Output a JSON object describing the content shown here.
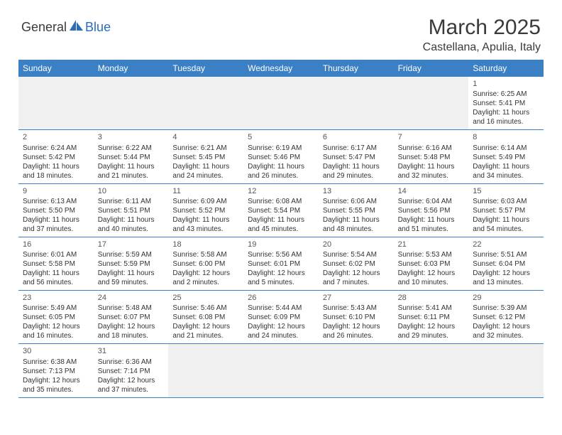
{
  "logo": {
    "part1": "General",
    "part2": "Blue"
  },
  "title": "March 2025",
  "subtitle": "Castellana, Apulia, Italy",
  "colors": {
    "header_bg": "#3b7fc4",
    "header_text": "#ffffff",
    "text": "#333333",
    "blank_bg": "#f0f0f0",
    "logo_blue": "#2a6db8"
  },
  "daynames": [
    "Sunday",
    "Monday",
    "Tuesday",
    "Wednesday",
    "Thursday",
    "Friday",
    "Saturday"
  ],
  "weeks": [
    [
      {
        "blank": true
      },
      {
        "blank": true
      },
      {
        "blank": true
      },
      {
        "blank": true
      },
      {
        "blank": true
      },
      {
        "blank": true
      },
      {
        "n": "1",
        "sr": "Sunrise: 6:25 AM",
        "ss": "Sunset: 5:41 PM",
        "dl1": "Daylight: 11 hours",
        "dl2": "and 16 minutes."
      }
    ],
    [
      {
        "n": "2",
        "sr": "Sunrise: 6:24 AM",
        "ss": "Sunset: 5:42 PM",
        "dl1": "Daylight: 11 hours",
        "dl2": "and 18 minutes."
      },
      {
        "n": "3",
        "sr": "Sunrise: 6:22 AM",
        "ss": "Sunset: 5:44 PM",
        "dl1": "Daylight: 11 hours",
        "dl2": "and 21 minutes."
      },
      {
        "n": "4",
        "sr": "Sunrise: 6:21 AM",
        "ss": "Sunset: 5:45 PM",
        "dl1": "Daylight: 11 hours",
        "dl2": "and 24 minutes."
      },
      {
        "n": "5",
        "sr": "Sunrise: 6:19 AM",
        "ss": "Sunset: 5:46 PM",
        "dl1": "Daylight: 11 hours",
        "dl2": "and 26 minutes."
      },
      {
        "n": "6",
        "sr": "Sunrise: 6:17 AM",
        "ss": "Sunset: 5:47 PM",
        "dl1": "Daylight: 11 hours",
        "dl2": "and 29 minutes."
      },
      {
        "n": "7",
        "sr": "Sunrise: 6:16 AM",
        "ss": "Sunset: 5:48 PM",
        "dl1": "Daylight: 11 hours",
        "dl2": "and 32 minutes."
      },
      {
        "n": "8",
        "sr": "Sunrise: 6:14 AM",
        "ss": "Sunset: 5:49 PM",
        "dl1": "Daylight: 11 hours",
        "dl2": "and 34 minutes."
      }
    ],
    [
      {
        "n": "9",
        "sr": "Sunrise: 6:13 AM",
        "ss": "Sunset: 5:50 PM",
        "dl1": "Daylight: 11 hours",
        "dl2": "and 37 minutes."
      },
      {
        "n": "10",
        "sr": "Sunrise: 6:11 AM",
        "ss": "Sunset: 5:51 PM",
        "dl1": "Daylight: 11 hours",
        "dl2": "and 40 minutes."
      },
      {
        "n": "11",
        "sr": "Sunrise: 6:09 AM",
        "ss": "Sunset: 5:52 PM",
        "dl1": "Daylight: 11 hours",
        "dl2": "and 43 minutes."
      },
      {
        "n": "12",
        "sr": "Sunrise: 6:08 AM",
        "ss": "Sunset: 5:54 PM",
        "dl1": "Daylight: 11 hours",
        "dl2": "and 45 minutes."
      },
      {
        "n": "13",
        "sr": "Sunrise: 6:06 AM",
        "ss": "Sunset: 5:55 PM",
        "dl1": "Daylight: 11 hours",
        "dl2": "and 48 minutes."
      },
      {
        "n": "14",
        "sr": "Sunrise: 6:04 AM",
        "ss": "Sunset: 5:56 PM",
        "dl1": "Daylight: 11 hours",
        "dl2": "and 51 minutes."
      },
      {
        "n": "15",
        "sr": "Sunrise: 6:03 AM",
        "ss": "Sunset: 5:57 PM",
        "dl1": "Daylight: 11 hours",
        "dl2": "and 54 minutes."
      }
    ],
    [
      {
        "n": "16",
        "sr": "Sunrise: 6:01 AM",
        "ss": "Sunset: 5:58 PM",
        "dl1": "Daylight: 11 hours",
        "dl2": "and 56 minutes."
      },
      {
        "n": "17",
        "sr": "Sunrise: 5:59 AM",
        "ss": "Sunset: 5:59 PM",
        "dl1": "Daylight: 11 hours",
        "dl2": "and 59 minutes."
      },
      {
        "n": "18",
        "sr": "Sunrise: 5:58 AM",
        "ss": "Sunset: 6:00 PM",
        "dl1": "Daylight: 12 hours",
        "dl2": "and 2 minutes."
      },
      {
        "n": "19",
        "sr": "Sunrise: 5:56 AM",
        "ss": "Sunset: 6:01 PM",
        "dl1": "Daylight: 12 hours",
        "dl2": "and 5 minutes."
      },
      {
        "n": "20",
        "sr": "Sunrise: 5:54 AM",
        "ss": "Sunset: 6:02 PM",
        "dl1": "Daylight: 12 hours",
        "dl2": "and 7 minutes."
      },
      {
        "n": "21",
        "sr": "Sunrise: 5:53 AM",
        "ss": "Sunset: 6:03 PM",
        "dl1": "Daylight: 12 hours",
        "dl2": "and 10 minutes."
      },
      {
        "n": "22",
        "sr": "Sunrise: 5:51 AM",
        "ss": "Sunset: 6:04 PM",
        "dl1": "Daylight: 12 hours",
        "dl2": "and 13 minutes."
      }
    ],
    [
      {
        "n": "23",
        "sr": "Sunrise: 5:49 AM",
        "ss": "Sunset: 6:05 PM",
        "dl1": "Daylight: 12 hours",
        "dl2": "and 16 minutes."
      },
      {
        "n": "24",
        "sr": "Sunrise: 5:48 AM",
        "ss": "Sunset: 6:07 PM",
        "dl1": "Daylight: 12 hours",
        "dl2": "and 18 minutes."
      },
      {
        "n": "25",
        "sr": "Sunrise: 5:46 AM",
        "ss": "Sunset: 6:08 PM",
        "dl1": "Daylight: 12 hours",
        "dl2": "and 21 minutes."
      },
      {
        "n": "26",
        "sr": "Sunrise: 5:44 AM",
        "ss": "Sunset: 6:09 PM",
        "dl1": "Daylight: 12 hours",
        "dl2": "and 24 minutes."
      },
      {
        "n": "27",
        "sr": "Sunrise: 5:43 AM",
        "ss": "Sunset: 6:10 PM",
        "dl1": "Daylight: 12 hours",
        "dl2": "and 26 minutes."
      },
      {
        "n": "28",
        "sr": "Sunrise: 5:41 AM",
        "ss": "Sunset: 6:11 PM",
        "dl1": "Daylight: 12 hours",
        "dl2": "and 29 minutes."
      },
      {
        "n": "29",
        "sr": "Sunrise: 5:39 AM",
        "ss": "Sunset: 6:12 PM",
        "dl1": "Daylight: 12 hours",
        "dl2": "and 32 minutes."
      }
    ],
    [
      {
        "n": "30",
        "sr": "Sunrise: 6:38 AM",
        "ss": "Sunset: 7:13 PM",
        "dl1": "Daylight: 12 hours",
        "dl2": "and 35 minutes."
      },
      {
        "n": "31",
        "sr": "Sunrise: 6:36 AM",
        "ss": "Sunset: 7:14 PM",
        "dl1": "Daylight: 12 hours",
        "dl2": "and 37 minutes."
      },
      {
        "blank": true
      },
      {
        "blank": true
      },
      {
        "blank": true
      },
      {
        "blank": true
      },
      {
        "blank": true
      }
    ]
  ]
}
